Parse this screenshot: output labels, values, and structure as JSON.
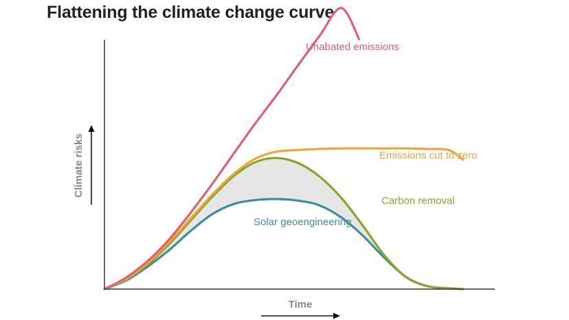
{
  "chart_data": {
    "type": "line",
    "title": "Flattening the climate change curve",
    "xlabel": "Time",
    "ylabel": "Climate risks",
    "xlim": [
      0,
      100
    ],
    "ylim": [
      0,
      100
    ],
    "grid": false,
    "legend": "inline labels",
    "axis_ticks": "none",
    "series": [
      {
        "name": "Unabated emissions",
        "color": "#e0606e",
        "x": [
          0,
          6,
          12,
          18,
          24,
          30,
          36,
          42,
          48,
          54,
          60,
          66,
          71
        ],
        "y": [
          0,
          4.3,
          10.5,
          18.6,
          28.6,
          39.4,
          50.8,
          62.1,
          72.8,
          84.1,
          95.1,
          105.5,
          93.8
        ]
      },
      {
        "name": "Emissions cut to zero",
        "color": "#f2a33a",
        "x": [
          0,
          6,
          12,
          18,
          24,
          30,
          36,
          42,
          48,
          54,
          60,
          66,
          72,
          78,
          84,
          90,
          96,
          100
        ],
        "y": [
          0,
          3.8,
          9.7,
          17.6,
          26.5,
          35.4,
          43.2,
          48.9,
          51.6,
          52.2,
          52.6,
          52.8,
          52.8,
          52.8,
          52.8,
          52.6,
          52.2,
          48.6
        ]
      },
      {
        "name": "Carbon removal",
        "color": "#86a82a",
        "x": [
          0,
          6,
          12,
          18,
          24,
          30,
          36,
          42,
          48,
          54,
          60,
          66,
          72,
          78,
          84,
          90,
          96,
          100
        ],
        "y": [
          0,
          3.5,
          9.2,
          16.8,
          25.7,
          34.6,
          42.4,
          47.6,
          49.2,
          47.3,
          42.2,
          34.3,
          23.9,
          12.7,
          4.6,
          1.1,
          0.3,
          0
        ]
      },
      {
        "name": "Solar geoengineering",
        "color": "#3e8d9e",
        "x": [
          0,
          6,
          12,
          18,
          24,
          30,
          36,
          42,
          48,
          54,
          60,
          66,
          72,
          78,
          84,
          90,
          96,
          100
        ],
        "y": [
          0,
          3.2,
          8.4,
          14.6,
          21.8,
          28.1,
          31.9,
          33.4,
          33.8,
          33.2,
          31.4,
          26.9,
          20.1,
          11.8,
          4.6,
          1.1,
          0.3,
          0
        ]
      }
    ],
    "shaded_region": {
      "between": [
        "Carbon removal",
        "Solar geoengineering"
      ],
      "color": "#e6e6e6"
    },
    "axis_color": "#333333",
    "label_color": "#888888"
  }
}
